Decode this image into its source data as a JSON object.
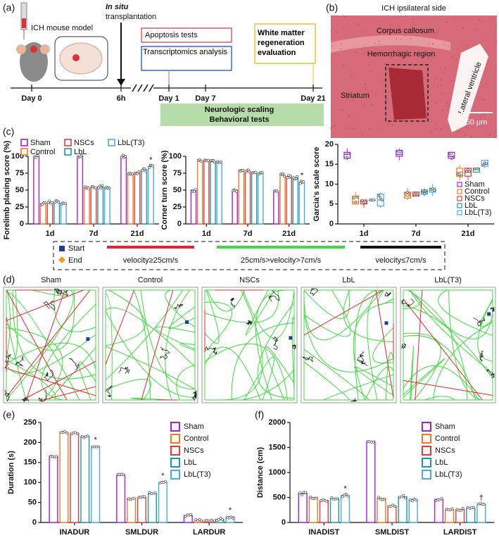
{
  "panel_labels": [
    "(a)",
    "(b)",
    "(c)",
    "(d)",
    "(e)",
    "(f)"
  ],
  "timeline": {
    "model": "ICH mouse model",
    "transplant_em": "In situ",
    "transplant": "transplantation",
    "boxes": [
      "Apoptosis tests",
      "Transcriptomics analysis",
      "White matter regeneration evaluation"
    ],
    "days": [
      "Day 0",
      "6h",
      "Day 1",
      "Day 7",
      "Day 21"
    ],
    "tests": [
      "Neurologic scaling",
      "Behavioral tests"
    ]
  },
  "micrograph": {
    "title": "ICH ipsilateral side",
    "labels": [
      "Corpus callosum",
      "Hemorrhagic region",
      "Striatum",
      "Lateral ventricle"
    ],
    "scale_bar": "50 μm"
  },
  "chart_data": [
    {
      "type": "bar",
      "y_label": "Forelimb placing score (%)",
      "categories": [
        "1d",
        "7d",
        "21d"
      ],
      "legend": "top",
      "ylim": [
        0,
        100
      ],
      "yticks": [
        0,
        25,
        50,
        75,
        100
      ],
      "series": [
        {
          "name": "Sham",
          "color": "#a51ee8",
          "values": [
            100,
            100,
            100
          ]
        },
        {
          "name": "Control",
          "color": "#ef7a22",
          "values": [
            30,
            53,
            75
          ]
        },
        {
          "name": "NSCs",
          "color": "#e83a3a",
          "values": [
            32,
            54,
            76
          ]
        },
        {
          "name": "LbL",
          "color": "#1a9aa0",
          "values": [
            33,
            55,
            80
          ]
        },
        {
          "name": "LbL(T3)",
          "color": "#4aa8f0",
          "values": [
            31,
            54,
            85
          ],
          "annotations": [
            null,
            null,
            "*"
          ]
        }
      ]
    },
    {
      "type": "bar",
      "y_label": "Corner turn score (%)",
      "categories": [
        "1d",
        "7d",
        "21d"
      ],
      "ylim": [
        0,
        100
      ],
      "yticks": [
        0,
        25,
        50,
        75,
        100
      ],
      "series": [
        {
          "color": "#a51ee8",
          "values": [
            50,
            50,
            48
          ]
        },
        {
          "color": "#ef7a22",
          "values": [
            93,
            80,
            72
          ]
        },
        {
          "color": "#e83a3a",
          "values": [
            93,
            78,
            70
          ]
        },
        {
          "color": "#1a9aa0",
          "values": [
            92,
            76,
            68
          ]
        },
        {
          "color": "#4aa8f0",
          "values": [
            92,
            74,
            62
          ],
          "annotations": [
            null,
            null,
            "*"
          ]
        }
      ]
    },
    {
      "type": "box",
      "y_label": "Garcia's scale score",
      "categories": [
        "1d",
        "7d",
        "21d"
      ],
      "legend": "inside-lower-right",
      "ylim": [
        0,
        20
      ],
      "yticks": [
        0,
        5,
        10,
        15,
        20
      ],
      "series": [
        {
          "name": "Sham",
          "color": "#a51ee8",
          "values": [
            [
              16,
              16.5,
              17.5,
              18,
              19
            ],
            [
              16,
              17,
              17.5,
              18.5,
              19
            ],
            [
              16,
              16.5,
              17,
              18,
              18
            ]
          ]
        },
        {
          "name": "Control",
          "color": "#ef7a22",
          "values": [
            [
              5,
              5,
              5.5,
              7,
              8
            ],
            [
              6,
              6.5,
              7,
              8,
              9
            ],
            [
              11,
              12,
              13,
              14,
              15
            ]
          ]
        },
        {
          "name": "NSCs",
          "color": "#e83a3a",
          "values": [
            [
              4,
              5,
              6,
              6,
              6
            ],
            [
              7,
              7,
              8,
              8,
              8
            ],
            [
              11,
              12,
              13,
              14,
              14
            ]
          ]
        },
        {
          "name": "LbL",
          "color": "#1a9aa0",
          "values": [
            [
              6,
              6,
              6,
              6,
              6
            ],
            [
              7,
              7.5,
              8,
              8.5,
              9
            ],
            [
              13,
              13,
              14,
              14,
              14
            ]
          ]
        },
        {
          "name": "LbL(T3)",
          "color": "#4aa8f0",
          "values": [
            [
              4,
              4.5,
              6,
              7.5,
              8
            ],
            [
              7,
              8,
              8,
              9,
              10
            ],
            [
              14,
              14.5,
              15,
              16,
              16
            ]
          ]
        }
      ]
    },
    {
      "type": "bar",
      "y_label": "Duration (s)",
      "categories": [
        "INADUR",
        "SMLDUR",
        "LARDUR"
      ],
      "legend": "right",
      "ylim": [
        0,
        250
      ],
      "yticks": [
        0,
        50,
        100,
        150,
        200,
        250
      ],
      "series": [
        {
          "name": "Sham",
          "color": "#a51ee8",
          "values": [
            165,
            118,
            17
          ]
        },
        {
          "name": "Control",
          "color": "#ef7a22",
          "values": [
            225,
            60,
            5
          ]
        },
        {
          "name": "NSCs",
          "color": "#e83a3a",
          "values": [
            223,
            62,
            6
          ]
        },
        {
          "name": "LbL",
          "color": "#1a9aa0",
          "values": [
            215,
            72,
            8
          ]
        },
        {
          "name": "LbL(T3)",
          "color": "#4aa8f0",
          "values": [
            190,
            100,
            14
          ],
          "annotations": [
            "*",
            "*",
            "*"
          ]
        }
      ]
    },
    {
      "type": "bar",
      "y_label": "Distance (cm)",
      "categories": [
        "INADIST",
        "SMLDIST",
        "LARDIST"
      ],
      "legend": "right",
      "ylim": [
        0,
        2000
      ],
      "yticks": [
        0,
        500,
        1000,
        1500,
        2000
      ],
      "series": [
        {
          "name": "Sham",
          "color": "#a51ee8",
          "values": [
            580,
            1620,
            460
          ]
        },
        {
          "name": "Control",
          "color": "#ef7a22",
          "values": [
            500,
            480,
            250
          ]
        },
        {
          "name": "NSCs",
          "color": "#e83a3a",
          "values": [
            440,
            330,
            260
          ]
        },
        {
          "name": "LbL",
          "color": "#1a9aa0",
          "values": [
            480,
            510,
            290
          ]
        },
        {
          "name": "LbL(T3)",
          "color": "#4aa8f0",
          "values": [
            540,
            460,
            360
          ],
          "annotations": [
            "*",
            null,
            "†"
          ]
        }
      ]
    }
  ],
  "track_legend": [
    {
      "name": "Start",
      "color": "#1f3f8f"
    },
    {
      "name": "End",
      "color": "#f39a1e"
    },
    {
      "name": "velocity≥25cm/s",
      "color": "#e8242b"
    },
    {
      "name": "25cm/s>velocity>7cm/s",
      "color": "#3ddc3d"
    },
    {
      "name": "velocity≤7cm/s",
      "color": "#111111"
    }
  ],
  "tracks": [
    "Sham",
    "Control",
    "NSCs",
    "LbL",
    "LbL(T3)"
  ]
}
